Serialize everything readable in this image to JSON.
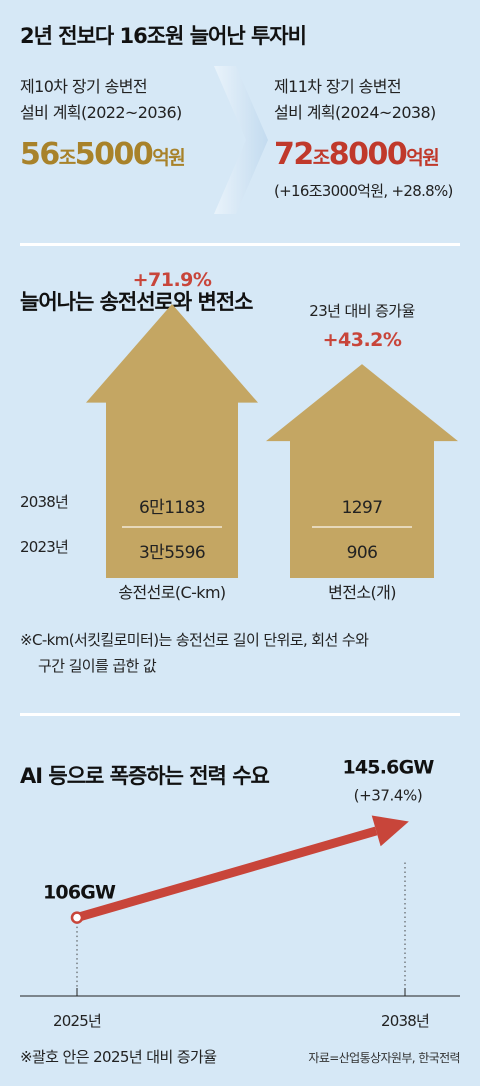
{
  "section1": {
    "title": "2년 전보다 16조원 늘어난 투자비",
    "plan10": {
      "label_line1": "제10차 장기 송변전",
      "label_line2": "설비 계획(2022~2036)",
      "amount_jo_num": "56",
      "amount_jo_unit": "조",
      "amount_eok_num": "5000",
      "amount_eok_unit": "억원",
      "color": "#a8822a"
    },
    "plan11": {
      "label_line1": "제11차 장기 송변전",
      "label_line2": "설비 계획(2024~2038)",
      "amount_jo_num": "72",
      "amount_jo_unit": "조",
      "amount_eok_num": "8000",
      "amount_eok_unit": "억원",
      "increase": "(+16조3000억원, +28.8%)",
      "color": "#c0392b"
    }
  },
  "section2": {
    "title": "늘어나는 송전선로와 변전소",
    "comparison_label": "23년 대비 증가율",
    "year_labels": [
      "2038년",
      "2023년"
    ],
    "footnote_line1": "※C-km(서킷킬로미터)는 송전선로 길이 단위로, 회선 수와",
    "footnote_line2": "구간 길이를 곱한 값"
  },
  "section3": {
    "title": "AI 등으로 폭증하는 전력 수요",
    "footnote": "※괄호 안은 2025년 대비 증가율",
    "source": "자료=산업통상자원부, 한국전력"
  },
  "chart_data": [
    {
      "type": "bar",
      "title": "늘어나는 송전선로와 변전소",
      "categories": [
        "송전선로(C-km)",
        "변전소(개)"
      ],
      "series": [
        {
          "name": "2023년",
          "values": [
            35596,
            906
          ],
          "labels": [
            "3만5596",
            "906"
          ]
        },
        {
          "name": "2038년",
          "values": [
            61183,
            1297
          ],
          "labels": [
            "6만1183",
            "1297"
          ]
        }
      ],
      "growth_labels": [
        "+71.9%",
        "+43.2%"
      ],
      "growth_values": [
        71.9,
        43.2
      ],
      "color": "#c4a663"
    },
    {
      "type": "line",
      "title": "AI 등으로 폭증하는 전력 수요",
      "x": [
        "2025년",
        "2038년"
      ],
      "values": [
        106,
        145.6
      ],
      "value_labels": [
        "106GW",
        "145.6GW"
      ],
      "growth_label": "(+37.4%)",
      "unit": "GW",
      "color": "#c8453a"
    }
  ]
}
